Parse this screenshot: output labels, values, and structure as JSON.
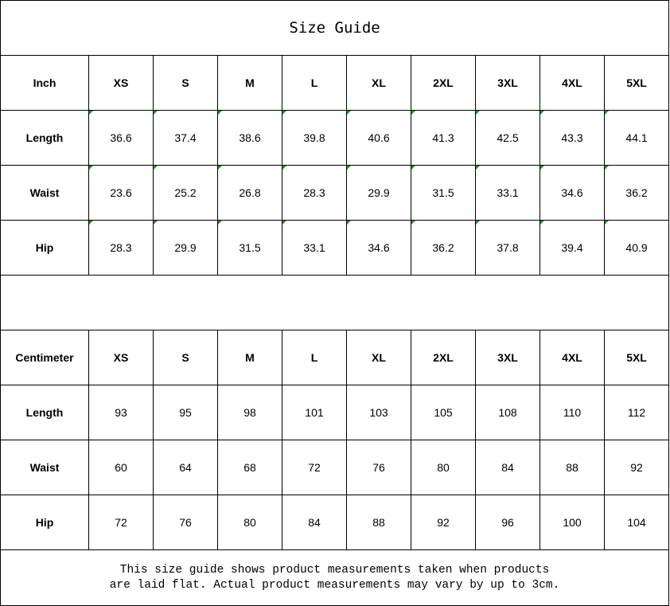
{
  "title": "Size Guide",
  "sizes": [
    "XS",
    "S",
    "M",
    "L",
    "XL",
    "2XL",
    "3XL",
    "4XL",
    "5XL"
  ],
  "inch": {
    "unit_label": "Inch",
    "rows": [
      {
        "label": "Length",
        "values": [
          "36.6",
          "37.4",
          "38.6",
          "39.8",
          "40.6",
          "41.3",
          "42.5",
          "43.3",
          "44.1"
        ]
      },
      {
        "label": "Waist",
        "values": [
          "23.6",
          "25.2",
          "26.8",
          "28.3",
          "29.9",
          "31.5",
          "33.1",
          "34.6",
          "36.2"
        ]
      },
      {
        "label": "Hip",
        "values": [
          "28.3",
          "29.9",
          "31.5",
          "33.1",
          "34.6",
          "36.2",
          "37.8",
          "39.4",
          "40.9"
        ]
      }
    ]
  },
  "cm": {
    "unit_label": "Centimeter",
    "rows": [
      {
        "label": "Length",
        "values": [
          "93",
          "95",
          "98",
          "101",
          "103",
          "105",
          "108",
          "110",
          "112"
        ]
      },
      {
        "label": "Waist",
        "values": [
          "60",
          "64",
          "68",
          "72",
          "76",
          "80",
          "84",
          "88",
          "92"
        ]
      },
      {
        "label": "Hip",
        "values": [
          "72",
          "76",
          "80",
          "84",
          "88",
          "92",
          "96",
          "100",
          "104"
        ]
      }
    ]
  },
  "note_line1": "This size guide shows product measurements taken when products",
  "note_line2": "are laid flat. Actual product measurements may vary by up to 3cm.",
  "colors": {
    "comment_marker": "#1a9a1a",
    "border": "#000000"
  }
}
